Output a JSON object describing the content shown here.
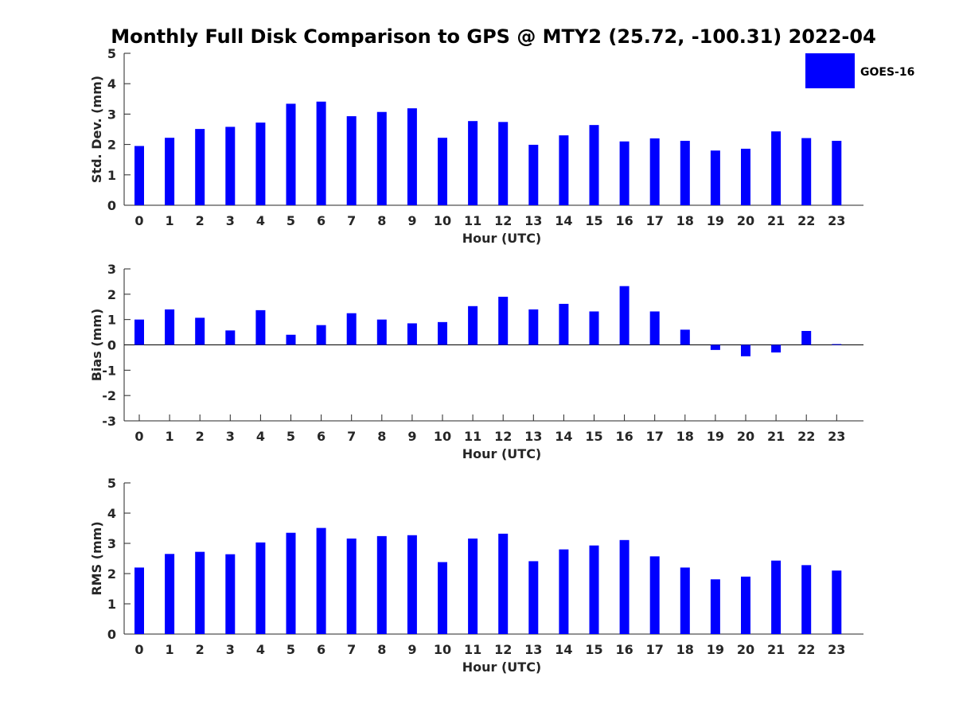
{
  "chart_data": {
    "title": "Monthly Full Disk Comparison to GPS @ MTY2 (25.72, -100.31) 2022-04",
    "legend": {
      "label": "GOES-16",
      "color": "#0000ff",
      "placement": "top-right"
    },
    "series_color": "#0000ff",
    "panels": [
      {
        "id": "std",
        "type": "bar",
        "ylabel": "Std. Dev. (mm)",
        "xlabel": "Hour (UTC)",
        "ylim": [
          0,
          5
        ],
        "yticks": [
          "0",
          "1",
          "2",
          "3",
          "4",
          "5"
        ],
        "xticks": [
          "0",
          "1",
          "2",
          "3",
          "4",
          "5",
          "6",
          "7",
          "8",
          "9",
          "10",
          "11",
          "12",
          "13",
          "14",
          "15",
          "16",
          "17",
          "18",
          "19",
          "20",
          "21",
          "22",
          "23"
        ],
        "x": [
          0,
          1,
          2,
          3,
          4,
          5,
          6,
          7,
          8,
          9,
          10,
          11,
          12,
          13,
          14,
          15,
          16,
          17,
          18,
          19,
          20,
          21,
          22,
          23
        ],
        "values": [
          1.95,
          2.22,
          2.51,
          2.58,
          2.72,
          3.34,
          3.41,
          2.93,
          3.07,
          3.19,
          2.22,
          2.77,
          2.74,
          1.99,
          2.3,
          2.64,
          2.1,
          2.2,
          2.12,
          1.8,
          1.86,
          2.43,
          2.21,
          2.12
        ]
      },
      {
        "id": "bias",
        "type": "bar",
        "ylabel": "Bias (mm)",
        "xlabel": "Hour (UTC)",
        "ylim": [
          -3,
          3
        ],
        "yticks": [
          "-3",
          "-2",
          "-1",
          "0",
          "1",
          "2",
          "3"
        ],
        "xticks": [
          "0",
          "1",
          "2",
          "3",
          "4",
          "5",
          "6",
          "7",
          "8",
          "9",
          "10",
          "11",
          "12",
          "13",
          "14",
          "15",
          "16",
          "17",
          "18",
          "19",
          "20",
          "21",
          "22",
          "23"
        ],
        "x": [
          0,
          1,
          2,
          3,
          4,
          5,
          6,
          7,
          8,
          9,
          10,
          11,
          12,
          13,
          14,
          15,
          16,
          17,
          18,
          19,
          20,
          21,
          22,
          23
        ],
        "values": [
          1.0,
          1.4,
          1.07,
          0.57,
          1.37,
          0.4,
          0.78,
          1.25,
          1.0,
          0.85,
          0.9,
          1.53,
          1.9,
          1.4,
          1.62,
          1.32,
          2.32,
          1.32,
          0.6,
          -0.2,
          -0.45,
          -0.3,
          0.55,
          0.03
        ]
      },
      {
        "id": "rms",
        "type": "bar",
        "ylabel": "RMS (mm)",
        "xlabel": "Hour (UTC)",
        "ylim": [
          0,
          5
        ],
        "yticks": [
          "0",
          "1",
          "2",
          "3",
          "4",
          "5"
        ],
        "xticks": [
          "0",
          "1",
          "2",
          "3",
          "4",
          "5",
          "6",
          "7",
          "8",
          "9",
          "10",
          "11",
          "12",
          "13",
          "14",
          "15",
          "16",
          "17",
          "18",
          "19",
          "20",
          "21",
          "22",
          "23"
        ],
        "x": [
          0,
          1,
          2,
          3,
          4,
          5,
          6,
          7,
          8,
          9,
          10,
          11,
          12,
          13,
          14,
          15,
          16,
          17,
          18,
          19,
          20,
          21,
          22,
          23
        ],
        "values": [
          2.2,
          2.65,
          2.72,
          2.64,
          3.03,
          3.35,
          3.51,
          3.16,
          3.24,
          3.27,
          2.38,
          3.16,
          3.32,
          2.41,
          2.8,
          2.93,
          3.11,
          2.57,
          2.2,
          1.81,
          1.9,
          2.43,
          2.28,
          2.1
        ]
      }
    ]
  }
}
